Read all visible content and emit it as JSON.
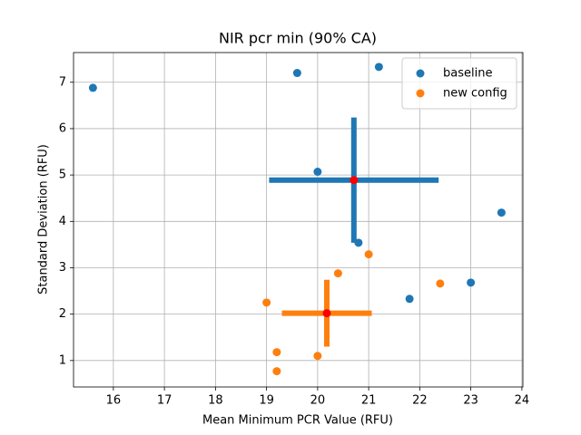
{
  "chart_data": {
    "type": "scatter",
    "title": "NIR pcr min (90% CA)",
    "x_label": "Mean Minimum PCR Value (RFU)",
    "y_label": "Standard Deviation (RFU)",
    "xlim": [
      15.22,
      24.02
    ],
    "ylim": [
      0.43,
      7.64
    ],
    "xticks": [
      16,
      17,
      18,
      19,
      20,
      21,
      22,
      23,
      24
    ],
    "yticks": [
      1,
      2,
      3,
      4,
      5,
      6,
      7
    ],
    "grid": true,
    "legend_position": "upper right",
    "mean_color": "red",
    "series": [
      {
        "name": "baseline",
        "color": "#1f77b4",
        "x": [
          15.6,
          19.6,
          21.2,
          20.0,
          20.8,
          23.6,
          21.8,
          23.0
        ],
        "y": [
          6.88,
          7.2,
          7.33,
          5.07,
          3.54,
          4.19,
          2.33,
          2.68
        ],
        "mean_x": 20.71,
        "mean_y": 4.89,
        "xerr": 1.66,
        "yerr": 1.35
      },
      {
        "name": "new config",
        "color": "#ff7f0e",
        "x": [
          21.0,
          20.4,
          19.0,
          22.4,
          19.2,
          19.2,
          20.0
        ],
        "y": [
          3.29,
          2.88,
          2.25,
          2.66,
          1.18,
          0.77,
          1.1
        ],
        "mean_x": 20.18,
        "mean_y": 2.02,
        "xerr": 0.88,
        "yerr": 0.72
      }
    ]
  }
}
